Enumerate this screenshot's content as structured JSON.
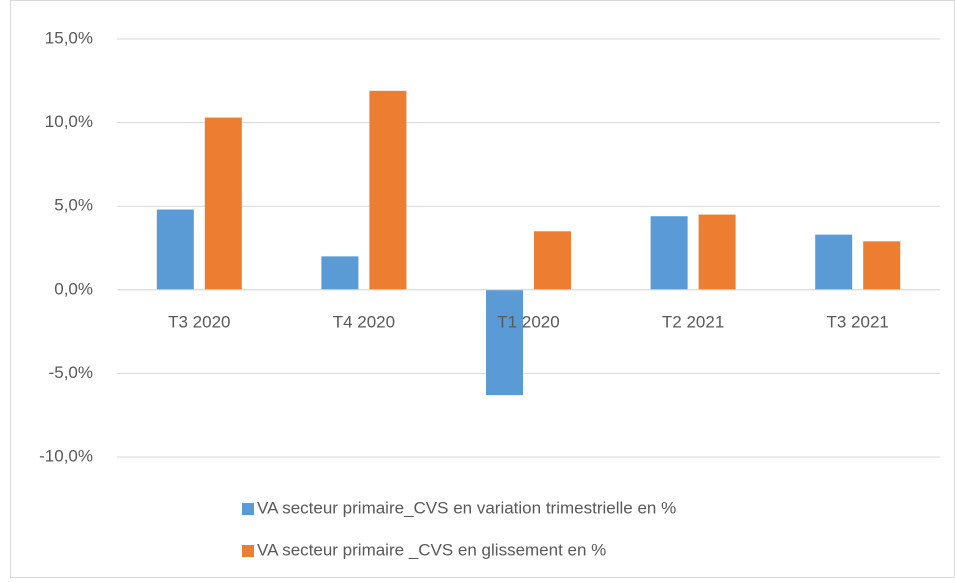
{
  "chart_data": {
    "type": "bar",
    "categories": [
      "T3 2020",
      "T4 2020",
      "T1 2020",
      "T2 2021",
      "T3 2021"
    ],
    "series": [
      {
        "name": "VA secteur primaire_CVS en variation trimestrielle en %",
        "color": "#5b9bd5",
        "values": [
          4.8,
          2.0,
          -6.3,
          4.4,
          3.3
        ]
      },
      {
        "name": "VA secteur primaire _CVS en glissement en %",
        "color": "#ed7d31",
        "values": [
          10.3,
          11.9,
          3.5,
          4.5,
          2.9
        ]
      }
    ],
    "ylim": [
      -10,
      15
    ],
    "yticks": [
      {
        "value": -10,
        "label": "-10,0%"
      },
      {
        "value": -5,
        "label": "-5,0%"
      },
      {
        "value": 0,
        "label": "0,0%"
      },
      {
        "value": 5,
        "label": "5,0%"
      },
      {
        "value": 10,
        "label": "10,0%"
      },
      {
        "value": 15,
        "label": "15,0%"
      }
    ],
    "grid": true
  }
}
